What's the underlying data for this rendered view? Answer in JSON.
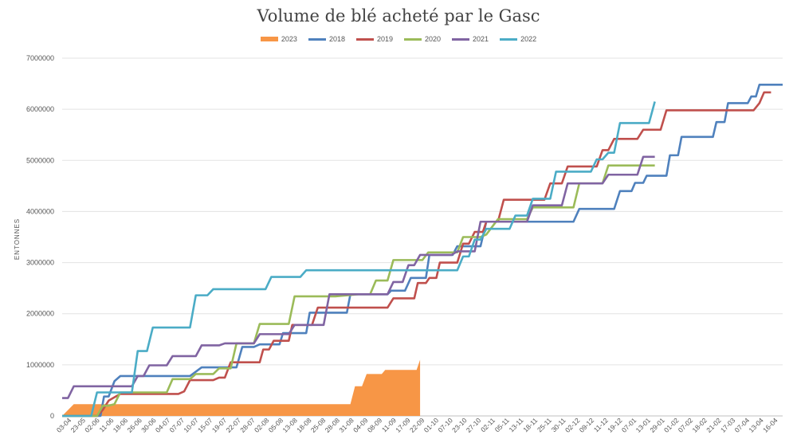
{
  "chart_data": {
    "type": "line",
    "title": "Volume de blé acheté par le Gasc",
    "ylabel": "ENTONNES",
    "xlabel": "",
    "ylim": [
      0,
      7000000
    ],
    "yticks": [
      "0",
      "1000000",
      "2000000",
      "3000000",
      "4000000",
      "5000000",
      "6000000",
      "7000000"
    ],
    "x_ticks": [
      "03-04",
      "23-05",
      "02-06",
      "11-06",
      "18-06",
      "26-06",
      "30-06",
      "04-07",
      "07-07",
      "10-07",
      "15-07",
      "19-07",
      "22-07",
      "28-07",
      "02-08",
      "05-08",
      "13-08",
      "18-08",
      "25-08",
      "28-08",
      "31-08",
      "04-09",
      "08-09",
      "11-09",
      "17-09",
      "22-09",
      "01-10",
      "07-10",
      "23-10",
      "27-10",
      "02-11",
      "05-11",
      "13-11",
      "18-11",
      "25-11",
      "30-11",
      "02-12",
      "09-12",
      "11-12",
      "19-12",
      "07-01",
      "13-01",
      "29-01",
      "01-02",
      "07-02",
      "18-02",
      "21-02",
      "17-03",
      "07-04",
      "13-04",
      "16-04"
    ],
    "grid": true,
    "legend_position": "top",
    "series": [
      {
        "name": "2023",
        "color": "#f79646",
        "style": "area",
        "points": [
          [
            0,
            0
          ],
          [
            1,
            230000
          ],
          [
            3,
            230000
          ],
          [
            5,
            230000
          ],
          [
            10,
            230000
          ],
          [
            15,
            230000
          ],
          [
            17,
            230000
          ],
          [
            20,
            230000
          ],
          [
            23,
            230000
          ],
          [
            24.8,
            230000
          ],
          [
            25.2,
            580000
          ],
          [
            25.8,
            580000
          ],
          [
            26.2,
            820000
          ],
          [
            27.5,
            820000
          ],
          [
            27.8,
            900000
          ],
          [
            30.5,
            900000
          ],
          [
            30.8,
            1100000
          ]
        ]
      },
      {
        "name": "2018",
        "color": "#4f81bd",
        "points": [
          [
            0,
            0
          ],
          [
            3.3,
            0
          ],
          [
            3.6,
            380000
          ],
          [
            4,
            380000
          ],
          [
            4.5,
            680000
          ],
          [
            5,
            780000
          ],
          [
            11,
            780000
          ],
          [
            12,
            950000
          ],
          [
            15,
            950000
          ],
          [
            15.5,
            1350000
          ],
          [
            16.5,
            1350000
          ],
          [
            17,
            1400000
          ],
          [
            18.7,
            1400000
          ],
          [
            19,
            1620000
          ],
          [
            21,
            1620000
          ],
          [
            21.3,
            2020000
          ],
          [
            24.5,
            2020000
          ],
          [
            24.8,
            2380000
          ],
          [
            28,
            2380000
          ],
          [
            28.3,
            2450000
          ],
          [
            29.5,
            2450000
          ],
          [
            30,
            2700000
          ],
          [
            31.3,
            2700000
          ],
          [
            31.6,
            3150000
          ],
          [
            33.6,
            3150000
          ],
          [
            34,
            3320000
          ],
          [
            36,
            3320000
          ],
          [
            36.5,
            3800000
          ],
          [
            39.5,
            3800000
          ],
          [
            40,
            3800000
          ],
          [
            44,
            3800000
          ],
          [
            44.5,
            4050000
          ],
          [
            47.5,
            4050000
          ],
          [
            48,
            4400000
          ],
          [
            49,
            4400000
          ],
          [
            49.3,
            4560000
          ],
          [
            50,
            4560000
          ],
          [
            50.3,
            4700000
          ],
          [
            52,
            4700000
          ],
          [
            52.3,
            5100000
          ],
          [
            53,
            5100000
          ],
          [
            53.3,
            5460000
          ],
          [
            56,
            5460000
          ],
          [
            56.3,
            5750000
          ],
          [
            57,
            5750000
          ],
          [
            57.3,
            6120000
          ],
          [
            59,
            6120000
          ],
          [
            59.3,
            6250000
          ],
          [
            59.7,
            6250000
          ],
          [
            60,
            6480000
          ],
          [
            62,
            6480000
          ]
        ]
      },
      {
        "name": "2019",
        "color": "#c0504d",
        "points": [
          [
            0,
            0
          ],
          [
            3,
            0
          ],
          [
            3.5,
            120000
          ],
          [
            4,
            300000
          ],
          [
            5,
            430000
          ],
          [
            10,
            430000
          ],
          [
            10.5,
            480000
          ],
          [
            11,
            700000
          ],
          [
            13,
            700000
          ],
          [
            13.5,
            750000
          ],
          [
            14,
            750000
          ],
          [
            14.5,
            1050000
          ],
          [
            17,
            1050000
          ],
          [
            17.3,
            1300000
          ],
          [
            17.8,
            1300000
          ],
          [
            18.2,
            1470000
          ],
          [
            19.5,
            1470000
          ],
          [
            19.8,
            1780000
          ],
          [
            21.5,
            1780000
          ],
          [
            22,
            2120000
          ],
          [
            25,
            2120000
          ],
          [
            25.5,
            2120000
          ],
          [
            28,
            2120000
          ],
          [
            28.5,
            2300000
          ],
          [
            30.3,
            2300000
          ],
          [
            30.6,
            2600000
          ],
          [
            31.3,
            2600000
          ],
          [
            31.6,
            2700000
          ],
          [
            32.2,
            2700000
          ],
          [
            32.5,
            3000000
          ],
          [
            34,
            3000000
          ],
          [
            34.5,
            3370000
          ],
          [
            35,
            3370000
          ],
          [
            35.5,
            3600000
          ],
          [
            36.2,
            3600000
          ],
          [
            36.5,
            3800000
          ],
          [
            37.5,
            3800000
          ],
          [
            38,
            4230000
          ],
          [
            41.5,
            4230000
          ],
          [
            42,
            4550000
          ],
          [
            43,
            4550000
          ],
          [
            43.5,
            4880000
          ],
          [
            46,
            4880000
          ],
          [
            46.5,
            5200000
          ],
          [
            47,
            5200000
          ],
          [
            47.5,
            5420000
          ],
          [
            49.5,
            5420000
          ],
          [
            50,
            5600000
          ],
          [
            51.5,
            5600000
          ],
          [
            52,
            5980000
          ],
          [
            56,
            5980000
          ],
          [
            57,
            5980000
          ],
          [
            59.5,
            5980000
          ],
          [
            60,
            6120000
          ],
          [
            60.4,
            6330000
          ],
          [
            61,
            6330000
          ]
        ]
      },
      {
        "name": "2020",
        "color": "#9bbb59",
        "points": [
          [
            0,
            0
          ],
          [
            3,
            0
          ],
          [
            3.5,
            200000
          ],
          [
            4,
            200000
          ],
          [
            4.5,
            230000
          ],
          [
            5,
            460000
          ],
          [
            9,
            460000
          ],
          [
            9.5,
            720000
          ],
          [
            11,
            720000
          ],
          [
            11.5,
            820000
          ],
          [
            13,
            820000
          ],
          [
            13.5,
            930000
          ],
          [
            14.5,
            930000
          ],
          [
            15,
            1420000
          ],
          [
            16.5,
            1420000
          ],
          [
            17,
            1800000
          ],
          [
            19.5,
            1800000
          ],
          [
            20,
            2340000
          ],
          [
            23,
            2340000
          ],
          [
            23.5,
            2340000
          ],
          [
            25.5,
            2380000
          ],
          [
            26.5,
            2380000
          ],
          [
            27,
            2650000
          ],
          [
            28,
            2650000
          ],
          [
            28.5,
            3050000
          ],
          [
            31,
            3050000
          ],
          [
            31.5,
            3200000
          ],
          [
            34,
            3200000
          ],
          [
            34.5,
            3500000
          ],
          [
            36,
            3500000
          ],
          [
            36.5,
            3550000
          ],
          [
            37,
            3700000
          ],
          [
            37.5,
            3850000
          ],
          [
            40,
            3850000
          ],
          [
            40.5,
            4080000
          ],
          [
            44,
            4080000
          ],
          [
            44.5,
            4550000
          ],
          [
            46.5,
            4550000
          ],
          [
            47,
            4900000
          ],
          [
            48,
            4900000
          ],
          [
            51,
            4900000
          ]
        ]
      },
      {
        "name": "2021",
        "color": "#8064a2",
        "points": [
          [
            0,
            350000
          ],
          [
            0.5,
            350000
          ],
          [
            1,
            580000
          ],
          [
            5,
            580000
          ],
          [
            6,
            580000
          ],
          [
            6.5,
            780000
          ],
          [
            7,
            780000
          ],
          [
            7.5,
            990000
          ],
          [
            9,
            990000
          ],
          [
            9.5,
            1170000
          ],
          [
            11.5,
            1170000
          ],
          [
            12,
            1380000
          ],
          [
            13.5,
            1380000
          ],
          [
            14,
            1420000
          ],
          [
            16.5,
            1420000
          ],
          [
            17,
            1600000
          ],
          [
            19.5,
            1600000
          ],
          [
            20,
            1780000
          ],
          [
            22.5,
            1780000
          ],
          [
            23,
            2380000
          ],
          [
            28,
            2380000
          ],
          [
            28.5,
            2620000
          ],
          [
            29.3,
            2620000
          ],
          [
            29.8,
            2950000
          ],
          [
            30.3,
            2950000
          ],
          [
            30.8,
            3150000
          ],
          [
            33.5,
            3150000
          ],
          [
            34,
            3220000
          ],
          [
            35.5,
            3220000
          ],
          [
            36,
            3800000
          ],
          [
            40,
            3800000
          ],
          [
            40.5,
            4120000
          ],
          [
            43,
            4120000
          ],
          [
            43.5,
            4550000
          ],
          [
            46.5,
            4550000
          ],
          [
            47,
            4720000
          ],
          [
            49.5,
            4720000
          ],
          [
            50,
            5070000
          ],
          [
            51,
            5070000
          ]
        ]
      },
      {
        "name": "2022",
        "color": "#4bacc6",
        "points": [
          [
            0,
            0
          ],
          [
            2.5,
            0
          ],
          [
            3,
            460000
          ],
          [
            5,
            460000
          ],
          [
            6,
            460000
          ],
          [
            6.5,
            1270000
          ],
          [
            7.3,
            1270000
          ],
          [
            7.8,
            1730000
          ],
          [
            11,
            1730000
          ],
          [
            11.5,
            2360000
          ],
          [
            12.5,
            2360000
          ],
          [
            13,
            2480000
          ],
          [
            17,
            2480000
          ],
          [
            17.5,
            2480000
          ],
          [
            18,
            2720000
          ],
          [
            20.5,
            2720000
          ],
          [
            21,
            2850000
          ],
          [
            26,
            2850000
          ],
          [
            31,
            2850000
          ],
          [
            34,
            2850000
          ],
          [
            34.5,
            3120000
          ],
          [
            35,
            3120000
          ],
          [
            35.5,
            3450000
          ],
          [
            36,
            3450000
          ],
          [
            36.5,
            3660000
          ],
          [
            38.5,
            3660000
          ],
          [
            39,
            3920000
          ],
          [
            40,
            3920000
          ],
          [
            40.5,
            4250000
          ],
          [
            42,
            4250000
          ],
          [
            42.5,
            4780000
          ],
          [
            45.5,
            4780000
          ],
          [
            46,
            5020000
          ],
          [
            46.5,
            5020000
          ],
          [
            47,
            5150000
          ],
          [
            47.5,
            5150000
          ],
          [
            48,
            5730000
          ],
          [
            50.5,
            5730000
          ],
          [
            51,
            6150000
          ]
        ]
      }
    ]
  }
}
